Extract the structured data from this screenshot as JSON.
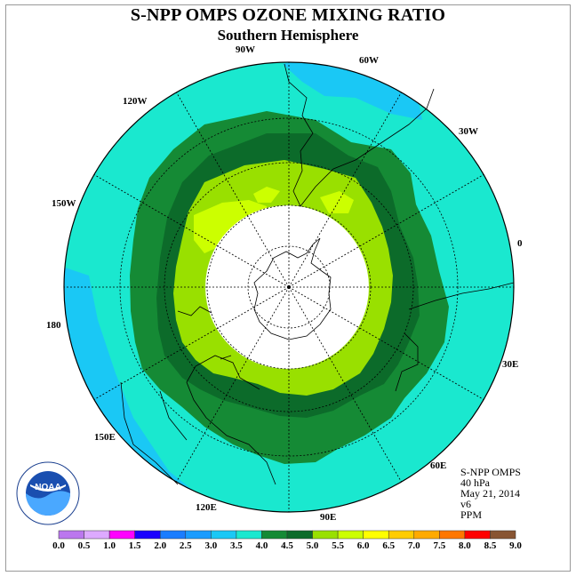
{
  "header": {
    "title": "S-NPP OMPS OZONE MIXING RATIO",
    "subtitle": "Southern Hemisphere"
  },
  "map": {
    "projection": "south polar stereographic",
    "longitude_labels": [
      "90W",
      "60W",
      "30W",
      "0",
      "30E",
      "60E",
      "90E",
      "120E",
      "150E",
      "180",
      "150W",
      "120W"
    ],
    "colors": {
      "ocean_bg": "#1ae8cf",
      "outer_blue": "#1ac8f5",
      "band_4_0": "#158a35",
      "band_4_5": "#0c6b2a",
      "band_5_0": "#99e000",
      "band_5_5": "#ccff00",
      "no_data": "#ffffff"
    },
    "data_text": "Ozone mixing ratio in PPM at 40 hPa; highest values (>5.0 PPM) form a ring around a polar no-data zone"
  },
  "info": {
    "line1": "S-NPP OMPS",
    "line2": "40 hPa",
    "line3": "May 21, 2014",
    "line4": "v6",
    "line5": "PPM"
  },
  "logo": {
    "text": "NOAA",
    "ring_text": "NATIONAL OCEANIC AND ATMOSPHERIC ADMINISTRATION · U.S. DEPARTMENT OF COMMERCE"
  },
  "colorbar": {
    "ticks": [
      "0.0",
      "0.5",
      "1.0",
      "1.5",
      "2.0",
      "2.5",
      "3.0",
      "3.5",
      "4.0",
      "4.5",
      "5.0",
      "5.5",
      "6.0",
      "6.5",
      "7.0",
      "7.5",
      "8.0",
      "8.5",
      "9.0"
    ],
    "colors": [
      "#bb77ee",
      "#ddaaff",
      "#ff00ff",
      "#1a00ff",
      "#1a7dff",
      "#1a9cff",
      "#1ac8f5",
      "#1ae8cf",
      "#158a35",
      "#0c6b2a",
      "#99e000",
      "#ccff00",
      "#ffff00",
      "#ffcc00",
      "#ffaa00",
      "#ff7700",
      "#ff0000",
      "#885533"
    ]
  }
}
